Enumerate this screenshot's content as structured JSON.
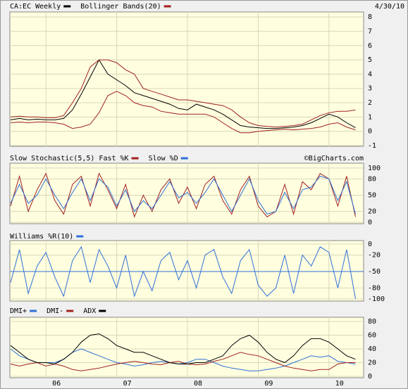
{
  "chart_data": [
    {
      "type": "line",
      "date": "4/30/10",
      "x": [
        2005.5,
        2005.625,
        2005.75,
        2005.875,
        2006,
        2006.125,
        2006.25,
        2006.375,
        2006.5,
        2006.625,
        2006.75,
        2006.875,
        2007,
        2007.125,
        2007.25,
        2007.375,
        2007.5,
        2007.625,
        2007.75,
        2007.875,
        2008,
        2008.125,
        2008.25,
        2008.375,
        2008.5,
        2008.625,
        2008.75,
        2008.875,
        2009,
        2009.125,
        2009.25,
        2009.375,
        2009.5,
        2009.625,
        2009.75,
        2009.875,
        2010,
        2010.125,
        2010.25,
        2010.375
      ],
      "xlim": [
        2005.49,
        2010.49
      ],
      "ylim": [
        -1.05,
        8.35
      ],
      "yticks": [
        -1,
        0,
        1,
        2,
        3,
        4,
        5,
        6,
        7,
        8
      ],
      "grid": true,
      "series": [
        {
          "name": "CA:EC Weekly",
          "color": "#000000",
          "values": [
            0.8,
            0.9,
            0.8,
            0.85,
            0.8,
            0.8,
            0.9,
            1.5,
            2.6,
            3.8,
            5.0,
            4.0,
            3.6,
            3.2,
            2.7,
            2.5,
            2.3,
            2.1,
            1.9,
            1.6,
            1.5,
            1.9,
            1.7,
            1.5,
            1.2,
            0.8,
            0.4,
            0.3,
            0.25,
            0.2,
            0.2,
            0.25,
            0.3,
            0.4,
            0.6,
            0.9,
            1.2,
            1.0,
            0.6,
            0.25
          ]
        },
        {
          "name": "Bollinger Bands(20)",
          "color": "#a02020",
          "values": [
            1.0,
            1.05,
            1.0,
            1.0,
            0.95,
            0.95,
            1.1,
            2.0,
            3.0,
            4.5,
            5.0,
            5.0,
            4.8,
            4.3,
            4.0,
            3.0,
            2.8,
            2.6,
            2.4,
            2.2,
            2.2,
            2.1,
            2.0,
            1.9,
            1.8,
            1.5,
            1.0,
            0.6,
            0.4,
            0.35,
            0.3,
            0.35,
            0.4,
            0.5,
            0.8,
            1.1,
            1.3,
            1.4,
            1.4,
            1.5
          ]
        },
        {
          "color": "#a02020",
          "values": [
            0.6,
            0.65,
            0.6,
            0.65,
            0.65,
            0.6,
            0.5,
            0.2,
            0.3,
            0.5,
            1.3,
            2.5,
            2.8,
            2.5,
            2.0,
            1.8,
            1.7,
            1.4,
            1.3,
            1.2,
            1.2,
            1.2,
            1.2,
            1.0,
            0.6,
            0.2,
            -0.1,
            -0.1,
            0.0,
            0.05,
            0.1,
            0.15,
            0.1,
            0.15,
            0.2,
            0.3,
            0.5,
            0.6,
            0.3,
            0.1
          ]
        }
      ]
    },
    {
      "type": "line",
      "indicator": "Slow Stochastic(5,5)",
      "watermark": "©BigCharts.com",
      "x": [
        2005.5,
        2005.625,
        2005.75,
        2005.875,
        2006,
        2006.125,
        2006.25,
        2006.375,
        2006.5,
        2006.625,
        2006.75,
        2006.875,
        2007,
        2007.125,
        2007.25,
        2007.375,
        2007.5,
        2007.625,
        2007.75,
        2007.875,
        2008,
        2008.125,
        2008.25,
        2008.375,
        2008.5,
        2008.625,
        2008.75,
        2008.875,
        2009,
        2009.125,
        2009.25,
        2009.375,
        2009.5,
        2009.625,
        2009.75,
        2009.875,
        2010,
        2010.125,
        2010.25,
        2010.375
      ],
      "xlim": [
        2005.49,
        2010.49
      ],
      "ylim": [
        -2.6,
        109
      ],
      "yticks": [
        0,
        20,
        50,
        80,
        100
      ],
      "grid": true,
      "series": [
        {
          "name": "Fast %K",
          "color": "#a02020",
          "values": [
            30,
            85,
            20,
            60,
            90,
            40,
            15,
            70,
            85,
            30,
            90,
            60,
            25,
            70,
            10,
            50,
            20,
            60,
            80,
            35,
            65,
            25,
            70,
            85,
            40,
            15,
            60,
            85,
            30,
            10,
            20,
            70,
            15,
            75,
            60,
            90,
            80,
            30,
            85,
            10
          ]
        },
        {
          "name": "Slow %D",
          "color": "#2f6fd6",
          "values": [
            35,
            70,
            35,
            50,
            80,
            50,
            25,
            55,
            80,
            40,
            80,
            65,
            30,
            60,
            20,
            40,
            25,
            50,
            75,
            45,
            55,
            35,
            55,
            80,
            50,
            20,
            50,
            80,
            40,
            15,
            20,
            55,
            25,
            60,
            65,
            85,
            80,
            40,
            75,
            15
          ]
        }
      ]
    },
    {
      "type": "line",
      "reference_line": -50,
      "reference_color": "#2f6fd6",
      "x": [
        2005.5,
        2005.625,
        2005.75,
        2005.875,
        2006,
        2006.125,
        2006.25,
        2006.375,
        2006.5,
        2006.625,
        2006.75,
        2006.875,
        2007,
        2007.125,
        2007.25,
        2007.375,
        2007.5,
        2007.625,
        2007.75,
        2007.875,
        2008,
        2008.125,
        2008.25,
        2008.375,
        2008.5,
        2008.625,
        2008.75,
        2008.875,
        2009,
        2009.125,
        2009.25,
        2009.375,
        2009.5,
        2009.625,
        2009.75,
        2009.875,
        2010,
        2010.125,
        2010.25,
        2010.375
      ],
      "xlim": [
        2005.49,
        2010.49
      ],
      "ylim": [
        -103.8,
        6.4
      ],
      "yticks": [
        -100,
        -80,
        -50,
        -20,
        0
      ],
      "grid": true,
      "series": [
        {
          "name": "Williams %R(10)",
          "color": "#2f6fd6",
          "values": [
            -70,
            -10,
            -90,
            -40,
            -15,
            -60,
            -95,
            -30,
            -5,
            -70,
            -10,
            -40,
            -80,
            -20,
            -95,
            -50,
            -85,
            -30,
            -15,
            -65,
            -30,
            -80,
            -20,
            -10,
            -60,
            -90,
            -30,
            -10,
            -75,
            -95,
            -80,
            -20,
            -90,
            -20,
            -40,
            -5,
            -15,
            -80,
            -10,
            -100
          ]
        }
      ]
    },
    {
      "type": "line",
      "x": [
        2005.5,
        2005.625,
        2005.75,
        2005.875,
        2006,
        2006.125,
        2006.25,
        2006.375,
        2006.5,
        2006.625,
        2006.75,
        2006.875,
        2007,
        2007.125,
        2007.25,
        2007.375,
        2007.5,
        2007.625,
        2007.75,
        2007.875,
        2008,
        2008.125,
        2008.25,
        2008.375,
        2008.5,
        2008.625,
        2008.75,
        2008.875,
        2009,
        2009.125,
        2009.25,
        2009.375,
        2009.5,
        2009.625,
        2009.75,
        2009.875,
        2010,
        2010.125,
        2010.25,
        2010.375
      ],
      "xlim": [
        2005.49,
        2010.49
      ],
      "ylim": [
        -2,
        86.2
      ],
      "yticks": [
        0,
        20,
        40,
        60,
        80
      ],
      "grid": true,
      "xticks": [
        {
          "value": 2006,
          "label": "06"
        },
        {
          "value": 2007,
          "label": "07"
        },
        {
          "value": 2008,
          "label": "08"
        },
        {
          "value": 2009,
          "label": "09"
        },
        {
          "value": 2010,
          "label": "10"
        }
      ],
      "series": [
        {
          "name": "DMI+",
          "color": "#2f6fd6",
          "values": [
            40,
            30,
            25,
            20,
            20,
            20,
            25,
            35,
            40,
            35,
            30,
            25,
            20,
            18,
            15,
            17,
            20,
            22,
            20,
            18,
            20,
            25,
            25,
            20,
            15,
            12,
            10,
            8,
            8,
            10,
            12,
            15,
            20,
            25,
            30,
            28,
            30,
            22,
            20,
            18
          ]
        },
        {
          "name": "DMI-",
          "color": "#a02020",
          "values": [
            18,
            15,
            18,
            20,
            15,
            18,
            15,
            10,
            8,
            10,
            12,
            15,
            18,
            20,
            22,
            20,
            18,
            17,
            20,
            22,
            18,
            17,
            18,
            22,
            25,
            30,
            35,
            32,
            30,
            25,
            20,
            15,
            12,
            10,
            8,
            10,
            10,
            18,
            20,
            20
          ]
        },
        {
          "name": "ADX",
          "color": "#000000",
          "values": [
            45,
            35,
            25,
            20,
            20,
            18,
            25,
            35,
            50,
            60,
            62,
            55,
            45,
            40,
            35,
            35,
            30,
            25,
            20,
            18,
            18,
            20,
            20,
            25,
            30,
            45,
            55,
            60,
            50,
            35,
            25,
            20,
            30,
            45,
            55,
            55,
            50,
            40,
            30,
            25
          ]
        }
      ]
    }
  ]
}
